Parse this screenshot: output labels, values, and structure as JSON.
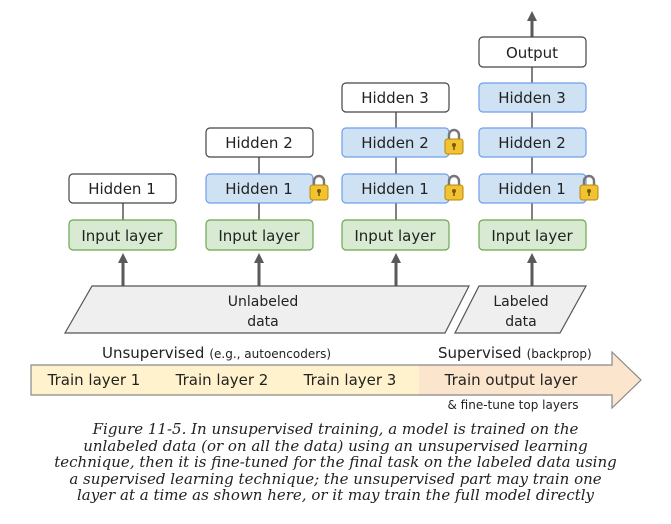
{
  "layers": {
    "output": "Output",
    "hidden3": "Hidden 3",
    "hidden2": "Hidden 2",
    "hidden1": "Hidden 1",
    "input": "Input layer"
  },
  "data_blocks": {
    "unlabeled_line1": "Unlabeled",
    "unlabeled_line2": "data",
    "labeled_line1": "Labeled",
    "labeled_line2": "data"
  },
  "phases": {
    "unsupervised": "Unsupervised",
    "unsupervised_note": "(e.g., autoencoders)",
    "supervised": "Supervised",
    "supervised_note": "(backprop)",
    "step1": "Train layer 1",
    "step2": "Train layer 2",
    "step3": "Train layer 3",
    "step4": "Train output layer",
    "step4_note": "& fine-tune top layers"
  },
  "colors": {
    "input_fill": "#d9ead3",
    "input_stroke": "#6aa84f",
    "hidden_frozen_fill": "#cfe2f3",
    "hidden_frozen_stroke": "#6d9eeb",
    "box_white": "#ffffff",
    "box_stroke": "#444444",
    "data_fill": "#efefef",
    "arrow": "#5a5a5a",
    "lock": "#f1c232",
    "bar_unsup": "#fff2cc",
    "bar_sup": "#fce5cd"
  },
  "caption": {
    "line1": "Figure 11-5. In unsupervised training, a model is trained on the",
    "line2": "unlabeled data (or on all the data) using an unsupervised learning",
    "line3": "technique, then it is fine-tuned for the final task on the labeled data using",
    "line4": "a supervised learning technique; the unsupervised part may train one",
    "line5": "layer at a time as shown here, or it may train the full model directly"
  }
}
